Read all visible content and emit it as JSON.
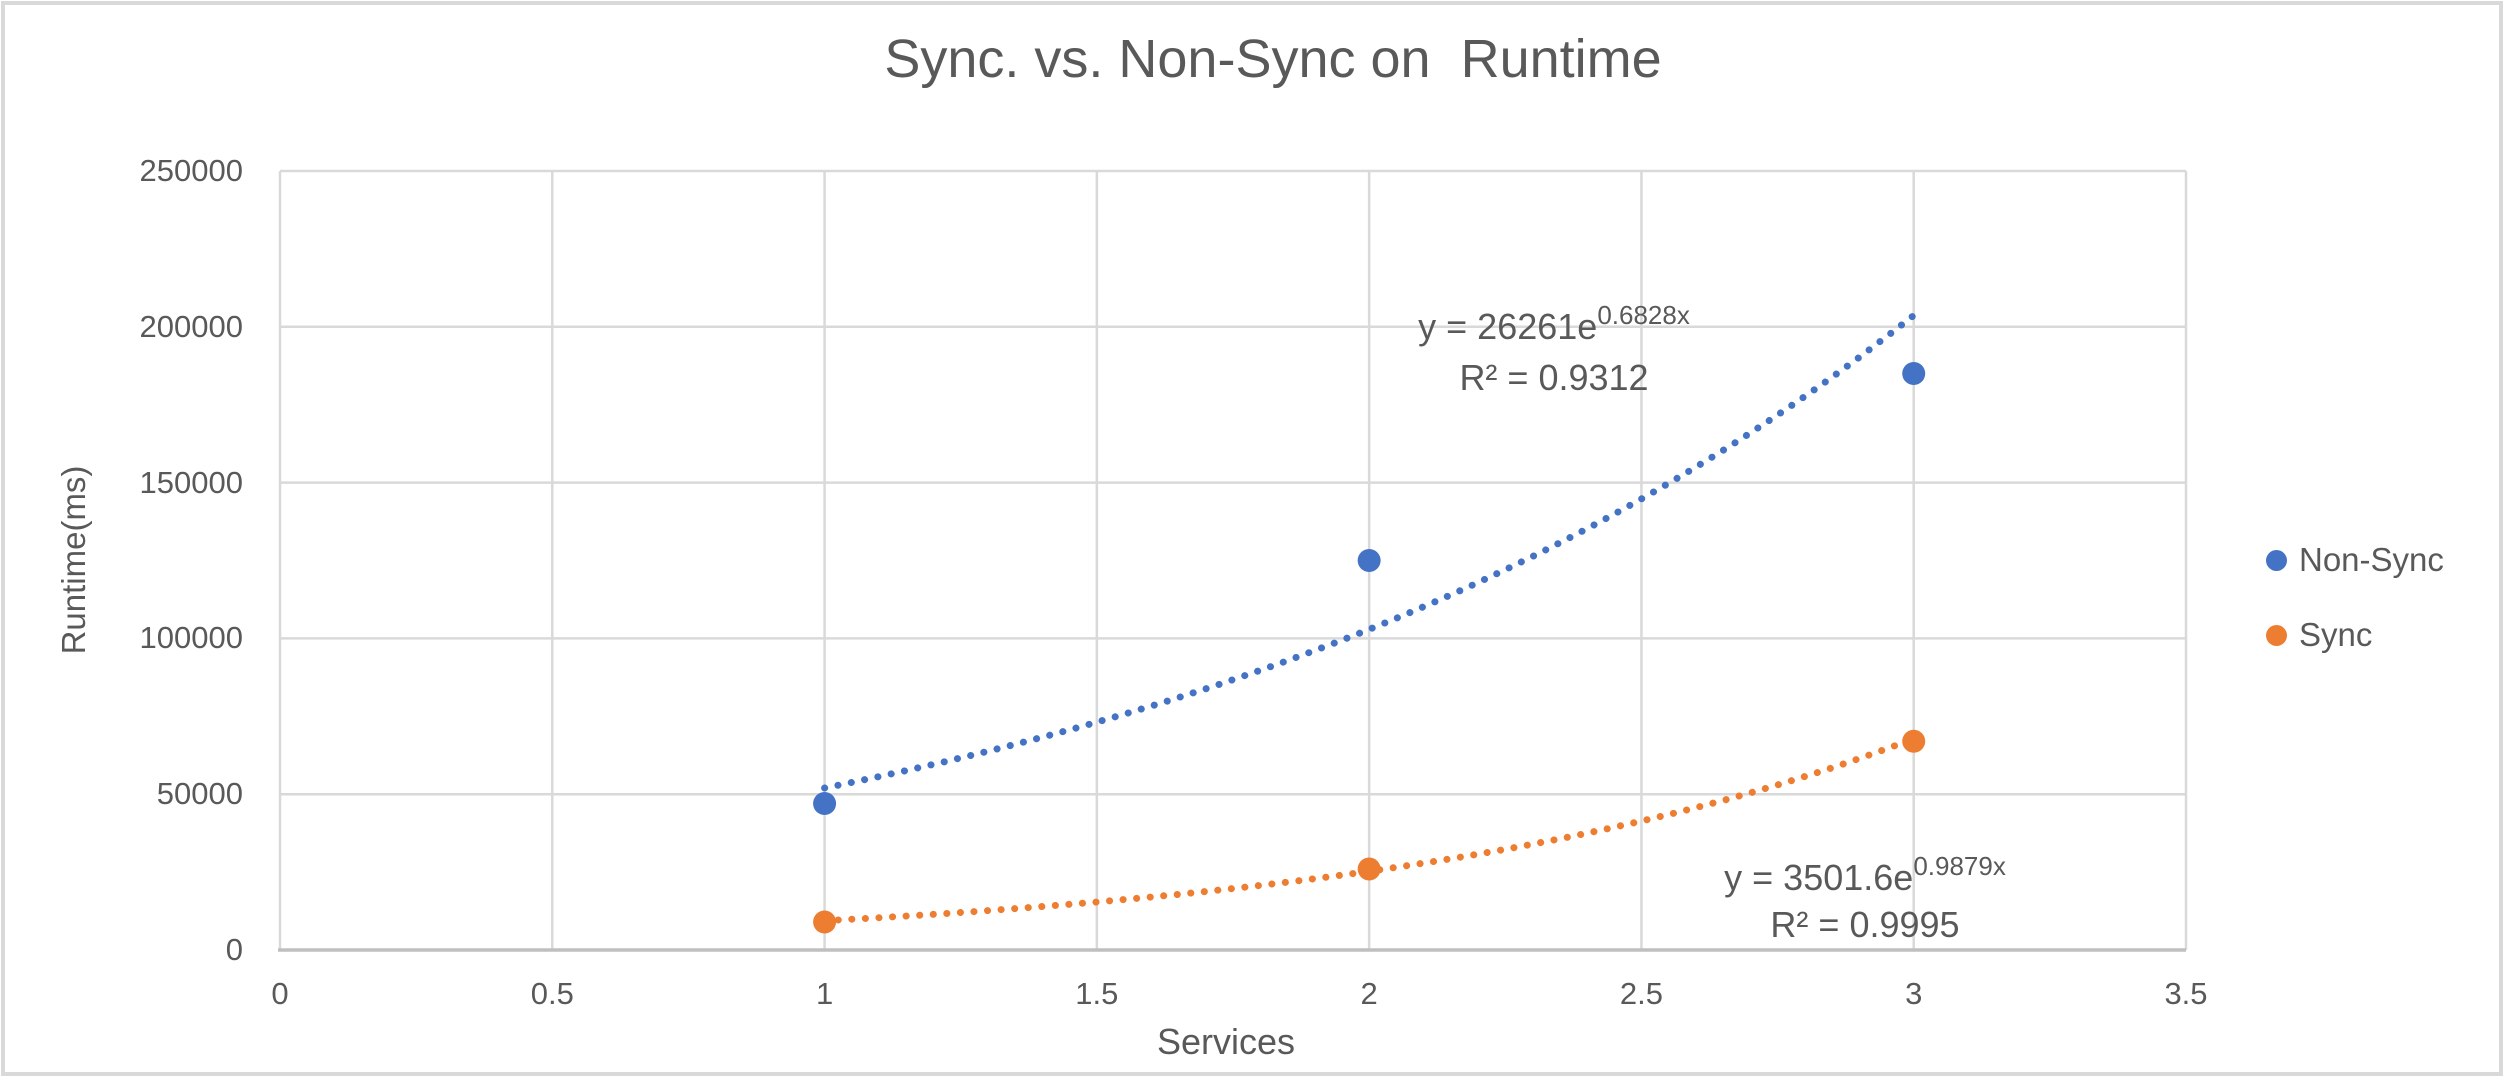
{
  "chart_data": {
    "type": "scatter",
    "title": "Sync. vs. Non-Sync on  Runtime",
    "xlabel": "Services",
    "ylabel": "Runtime(ms)",
    "xlim": [
      0,
      3.5
    ],
    "ylim": [
      0,
      250000
    ],
    "x_ticks": [
      {
        "value": 0,
        "label": "0"
      },
      {
        "value": 0.5,
        "label": "0.5"
      },
      {
        "value": 1,
        "label": "1"
      },
      {
        "value": 1.5,
        "label": "1.5"
      },
      {
        "value": 2,
        "label": "2"
      },
      {
        "value": 2.5,
        "label": "2.5"
      },
      {
        "value": 3,
        "label": "3"
      },
      {
        "value": 3.5,
        "label": "3.5"
      }
    ],
    "y_ticks": [
      {
        "value": 0,
        "label": "0"
      },
      {
        "value": 50000,
        "label": "50000"
      },
      {
        "value": 100000,
        "label": "100000"
      },
      {
        "value": 150000,
        "label": "150000"
      },
      {
        "value": 200000,
        "label": "200000"
      },
      {
        "value": 250000,
        "label": "250000"
      }
    ],
    "grid": "major-both",
    "legend_position": "right",
    "colors": {
      "gridline": "#d9d9d9",
      "axis_line": "#bfbfbf",
      "text": "#595959",
      "non_sync": "#4472C4",
      "sync": "#ED7D31"
    },
    "series": [
      {
        "name": "Non-Sync",
        "color": "#4472C4",
        "points": [
          {
            "x": 1,
            "y": 47000
          },
          {
            "x": 2,
            "y": 125000
          },
          {
            "x": 3,
            "y": 185000
          }
        ],
        "trendline": {
          "kind": "exponential",
          "coefficient": 26261,
          "rate": 0.6828,
          "r_squared": 0.9312,
          "x_range": [
            1,
            3
          ],
          "equation_base": "y = 26261e",
          "equation_exponent": "0.6828x",
          "r2_label": "R² = 0.9312"
        }
      },
      {
        "name": "Sync",
        "color": "#ED7D31",
        "points": [
          {
            "x": 1,
            "y": 9000
          },
          {
            "x": 2,
            "y": 26000
          },
          {
            "x": 3,
            "y": 67000
          }
        ],
        "trendline": {
          "kind": "exponential",
          "coefficient": 3501.6,
          "rate": 0.9879,
          "r_squared": 0.9995,
          "x_range": [
            1,
            3
          ],
          "equation_base": "y = 3501.6e",
          "equation_exponent": "0.9879x",
          "r2_label": "R² = 0.9995"
        }
      }
    ]
  }
}
